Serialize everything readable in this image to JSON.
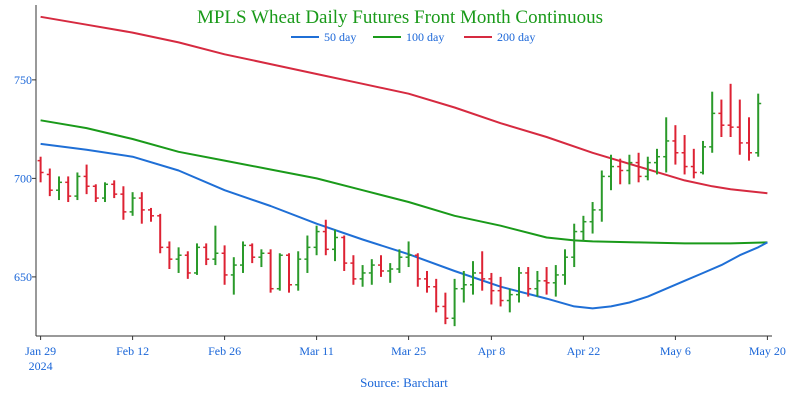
{
  "chart_data": {
    "type": "ohlc",
    "title": "MPLS Wheat Daily Futures Front Month Continuous",
    "source": "Source: Barchart",
    "colors": {
      "title": "#1a9a1a",
      "axis_text": "#1a66d8",
      "up": "#2a9a2a",
      "down": "#dd2233",
      "ma50": "#1f6fd6",
      "ma100": "#1a9a1a",
      "ma200": "#d62a40",
      "axis": "#333333"
    },
    "legend": [
      {
        "name": "50 day",
        "key": "ma50"
      },
      {
        "name": "100 day",
        "key": "ma100"
      },
      {
        "name": "200 day",
        "key": "ma200"
      }
    ],
    "legend_position": "top-center",
    "grid": false,
    "y_axis": {
      "ticks": [
        650,
        700,
        750
      ],
      "ylim": [
        620,
        788
      ]
    },
    "x_axis": {
      "ticks": [
        {
          "label": "Jan 29",
          "sub": "2024",
          "index": 0
        },
        {
          "label": "Feb 12",
          "sub": "",
          "index": 10
        },
        {
          "label": "Feb 26",
          "sub": "",
          "index": 20
        },
        {
          "label": "Mar 11",
          "sub": "",
          "index": 30
        },
        {
          "label": "Mar 25",
          "sub": "",
          "index": 40
        },
        {
          "label": "Apr 8",
          "sub": "",
          "index": 49
        },
        {
          "label": "Apr 22",
          "sub": "",
          "index": 59
        },
        {
          "label": "May 6",
          "sub": "",
          "index": 69
        },
        {
          "label": "May 20",
          "sub": "",
          "index": 79
        }
      ],
      "xlim": [
        -0.5,
        79.5
      ]
    },
    "ohlc": [
      [
        709,
        711,
        698,
        703
      ],
      [
        702,
        705,
        691,
        694
      ],
      [
        694,
        701,
        689,
        698
      ],
      [
        698,
        701,
        688,
        691
      ],
      [
        691,
        703,
        689,
        701
      ],
      [
        701,
        707,
        692,
        696
      ],
      [
        696,
        697,
        688,
        690
      ],
      [
        690,
        698,
        688,
        697
      ],
      [
        697,
        699,
        690,
        692
      ],
      [
        692,
        696,
        679,
        683
      ],
      [
        683,
        693,
        681,
        690
      ],
      [
        690,
        693,
        677,
        684
      ],
      [
        684,
        685,
        678,
        681
      ],
      [
        681,
        682,
        662,
        665
      ],
      [
        665,
        668,
        654,
        659
      ],
      [
        659,
        665,
        652,
        661
      ],
      [
        661,
        663,
        649,
        652
      ],
      [
        652,
        667,
        651,
        665
      ],
      [
        665,
        667,
        656,
        659
      ],
      [
        659,
        676,
        656,
        662
      ],
      [
        662,
        666,
        646,
        651
      ],
      [
        651,
        660,
        641,
        656
      ],
      [
        656,
        668,
        652,
        666
      ],
      [
        666,
        667,
        657,
        660
      ],
      [
        660,
        664,
        655,
        662
      ],
      [
        662,
        664,
        642,
        644
      ],
      [
        644,
        662,
        643,
        661
      ],
      [
        661,
        662,
        642,
        646
      ],
      [
        646,
        663,
        643,
        659
      ],
      [
        659,
        671,
        652,
        665
      ],
      [
        665,
        676,
        661,
        673
      ],
      [
        673,
        679,
        661,
        664
      ],
      [
        664,
        674,
        658,
        670
      ],
      [
        670,
        671,
        653,
        657
      ],
      [
        657,
        661,
        646,
        649
      ],
      [
        649,
        656,
        645,
        652
      ],
      [
        652,
        659,
        646,
        656
      ],
      [
        656,
        661,
        650,
        653
      ],
      [
        653,
        657,
        647,
        654
      ],
      [
        654,
        664,
        652,
        660
      ],
      [
        660,
        668,
        655,
        661
      ],
      [
        661,
        662,
        645,
        649
      ],
      [
        649,
        653,
        642,
        645
      ],
      [
        645,
        649,
        632,
        635
      ],
      [
        635,
        642,
        626,
        629
      ],
      [
        629,
        649,
        625,
        644
      ],
      [
        644,
        653,
        637,
        646
      ],
      [
        646,
        658,
        641,
        652
      ],
      [
        652,
        663,
        643,
        649
      ],
      [
        649,
        652,
        636,
        643
      ],
      [
        643,
        650,
        635,
        638
      ],
      [
        638,
        644,
        632,
        641
      ],
      [
        641,
        655,
        637,
        652
      ],
      [
        652,
        655,
        640,
        644
      ],
      [
        644,
        653,
        640,
        648
      ],
      [
        648,
        655,
        641,
        647
      ],
      [
        647,
        656,
        640,
        651
      ],
      [
        651,
        664,
        646,
        660
      ],
      [
        660,
        677,
        655,
        673
      ],
      [
        673,
        681,
        668,
        678
      ],
      [
        678,
        688,
        672,
        684
      ],
      [
        684,
        704,
        678,
        701
      ],
      [
        701,
        712,
        694,
        706
      ],
      [
        706,
        710,
        697,
        704
      ],
      [
        704,
        712,
        697,
        708
      ],
      [
        708,
        713,
        698,
        701
      ],
      [
        701,
        711,
        699,
        708
      ],
      [
        708,
        715,
        702,
        711
      ],
      [
        711,
        731,
        703,
        719
      ],
      [
        719,
        727,
        707,
        713
      ],
      [
        713,
        722,
        702,
        706
      ],
      [
        706,
        715,
        700,
        703
      ],
      [
        703,
        719,
        702,
        716
      ],
      [
        716,
        744,
        713,
        733
      ],
      [
        733,
        740,
        721,
        727
      ],
      [
        727,
        748,
        721,
        726
      ],
      [
        726,
        740,
        712,
        718
      ],
      [
        718,
        731,
        709,
        713
      ],
      [
        713,
        743,
        711,
        738
      ]
    ],
    "ma50": [
      [
        0,
        717.5
      ],
      [
        5,
        714.5
      ],
      [
        10,
        711
      ],
      [
        15,
        704
      ],
      [
        20,
        694
      ],
      [
        25,
        686
      ],
      [
        30,
        677
      ],
      [
        35,
        669
      ],
      [
        40,
        661.5
      ],
      [
        45,
        653
      ],
      [
        50,
        645
      ],
      [
        55,
        639
      ],
      [
        58,
        635
      ],
      [
        60,
        634
      ],
      [
        62,
        635
      ],
      [
        64,
        637
      ],
      [
        66,
        640
      ],
      [
        68,
        644
      ],
      [
        70,
        648
      ],
      [
        72,
        652
      ],
      [
        74,
        656
      ],
      [
        76,
        661
      ],
      [
        78,
        665
      ],
      [
        79,
        667.5
      ]
    ],
    "ma100": [
      [
        0,
        729.5
      ],
      [
        5,
        725.5
      ],
      [
        10,
        720
      ],
      [
        15,
        713.5
      ],
      [
        20,
        709
      ],
      [
        25,
        704.5
      ],
      [
        30,
        700
      ],
      [
        35,
        694
      ],
      [
        40,
        688
      ],
      [
        45,
        681
      ],
      [
        50,
        676
      ],
      [
        55,
        670
      ],
      [
        58,
        668.5
      ],
      [
        60,
        668
      ],
      [
        65,
        667.5
      ],
      [
        70,
        667
      ],
      [
        75,
        667
      ],
      [
        79,
        667.5
      ]
    ],
    "ma200": [
      [
        0,
        782
      ],
      [
        5,
        778
      ],
      [
        10,
        774
      ],
      [
        15,
        769
      ],
      [
        20,
        763
      ],
      [
        25,
        758
      ],
      [
        30,
        753
      ],
      [
        35,
        748
      ],
      [
        40,
        743
      ],
      [
        45,
        736
      ],
      [
        50,
        728
      ],
      [
        55,
        721
      ],
      [
        60,
        713
      ],
      [
        65,
        706
      ],
      [
        70,
        699
      ],
      [
        73,
        696
      ],
      [
        75,
        694.5
      ],
      [
        77,
        693.5
      ],
      [
        79,
        692.5
      ]
    ]
  }
}
